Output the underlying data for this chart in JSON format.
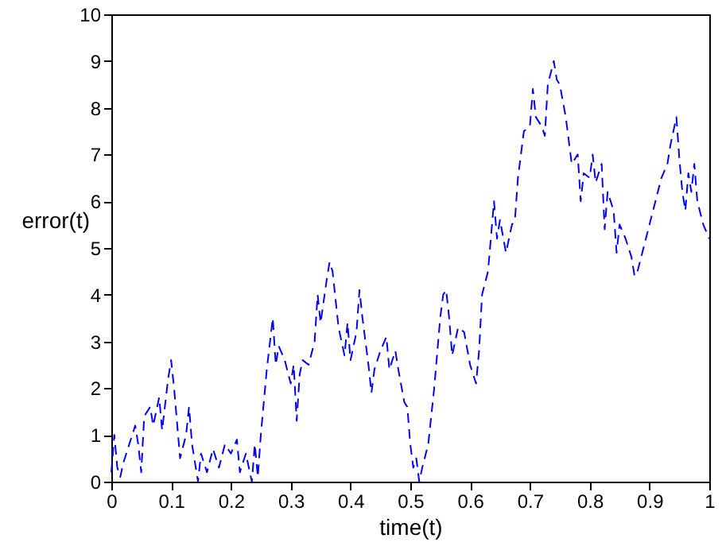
{
  "chart_data": {
    "type": "line",
    "xlabel": "time(t)",
    "ylabel": "error(t)",
    "x": [
      0,
      0.005,
      0.01,
      0.015,
      0.02,
      0.03,
      0.04,
      0.045,
      0.05,
      0.055,
      0.065,
      0.07,
      0.08,
      0.085,
      0.095,
      0.1,
      0.105,
      0.115,
      0.125,
      0.13,
      0.135,
      0.145,
      0.15,
      0.16,
      0.17,
      0.18,
      0.19,
      0.2,
      0.21,
      0.215,
      0.225,
      0.235,
      0.24,
      0.245,
      0.25,
      0.26,
      0.27,
      0.275,
      0.28,
      0.29,
      0.3,
      0.305,
      0.31,
      0.315,
      0.32,
      0.33,
      0.34,
      0.345,
      0.35,
      0.36,
      0.365,
      0.37,
      0.38,
      0.39,
      0.395,
      0.4,
      0.41,
      0.415,
      0.42,
      0.43,
      0.435,
      0.44,
      0.45,
      0.46,
      0.465,
      0.475,
      0.48,
      0.49,
      0.495,
      0.5,
      0.505,
      0.51,
      0.515,
      0.52,
      0.53,
      0.54,
      0.55,
      0.555,
      0.56,
      0.565,
      0.57,
      0.58,
      0.59,
      0.6,
      0.61,
      0.615,
      0.62,
      0.63,
      0.64,
      0.645,
      0.65,
      0.66,
      0.67,
      0.675,
      0.68,
      0.69,
      0.7,
      0.705,
      0.71,
      0.72,
      0.725,
      0.73,
      0.74,
      0.745,
      0.75,
      0.76,
      0.77,
      0.78,
      0.785,
      0.79,
      0.8,
      0.805,
      0.81,
      0.82,
      0.825,
      0.83,
      0.84,
      0.845,
      0.85,
      0.86,
      0.87,
      0.875,
      0.88,
      0.89,
      0.9,
      0.91,
      0.92,
      0.93,
      0.935,
      0.94,
      0.945,
      0.95,
      0.955,
      0.96,
      0.965,
      0.97,
      0.975,
      0.98,
      0.99,
      1.0
    ],
    "series": [
      {
        "color": "#0000ff",
        "values": [
          0.2,
          1.0,
          0.3,
          0.1,
          0.4,
          0.8,
          1.2,
          0.8,
          0.2,
          1.4,
          1.6,
          1.2,
          1.8,
          1.1,
          2.2,
          2.6,
          2.0,
          0.5,
          1.0,
          1.6,
          0.8,
          0.0,
          0.6,
          0.2,
          0.7,
          0.3,
          0.8,
          0.6,
          0.9,
          0.2,
          0.6,
          0.0,
          0.8,
          0.1,
          1.0,
          2.4,
          3.5,
          2.5,
          2.9,
          2.6,
          2.1,
          2.5,
          1.3,
          2.3,
          2.6,
          2.5,
          3.0,
          4.0,
          3.4,
          4.3,
          4.7,
          4.5,
          3.3,
          2.7,
          3.4,
          2.6,
          3.2,
          4.1,
          3.5,
          2.5,
          1.9,
          2.4,
          2.8,
          3.1,
          2.4,
          2.8,
          2.4,
          1.7,
          1.6,
          0.8,
          0.3,
          0.5,
          0.0,
          0.3,
          0.8,
          2.0,
          3.5,
          4.0,
          4.1,
          3.5,
          2.7,
          3.3,
          3.2,
          2.5,
          2.1,
          2.8,
          4.0,
          4.5,
          6.0,
          5.2,
          5.6,
          4.9,
          5.5,
          5.6,
          6.5,
          7.5,
          7.6,
          8.4,
          7.8,
          7.6,
          7.4,
          8.5,
          9.0,
          8.6,
          8.5,
          7.8,
          6.8,
          7.0,
          6.0,
          6.6,
          6.5,
          7.0,
          6.4,
          6.8,
          5.4,
          6.2,
          5.8,
          4.9,
          5.5,
          5.2,
          4.8,
          4.4,
          4.5,
          5.0,
          5.5,
          6.0,
          6.5,
          6.8,
          7.2,
          7.5,
          7.8,
          6.9,
          6.2,
          5.8,
          6.6,
          6.2,
          6.8,
          6.0,
          5.5,
          5.2
        ]
      }
    ],
    "xlim": [
      0,
      1
    ],
    "xticks": [
      0,
      0.1,
      0.2,
      0.3,
      0.4,
      0.5,
      0.6,
      0.7,
      0.8,
      0.9,
      1
    ],
    "ylim": [
      0,
      10
    ],
    "yticks": [
      0,
      1,
      2,
      3,
      4,
      5,
      6,
      7,
      8,
      9,
      10
    ],
    "grid": false,
    "line_style": "dashed",
    "marker": "none"
  }
}
